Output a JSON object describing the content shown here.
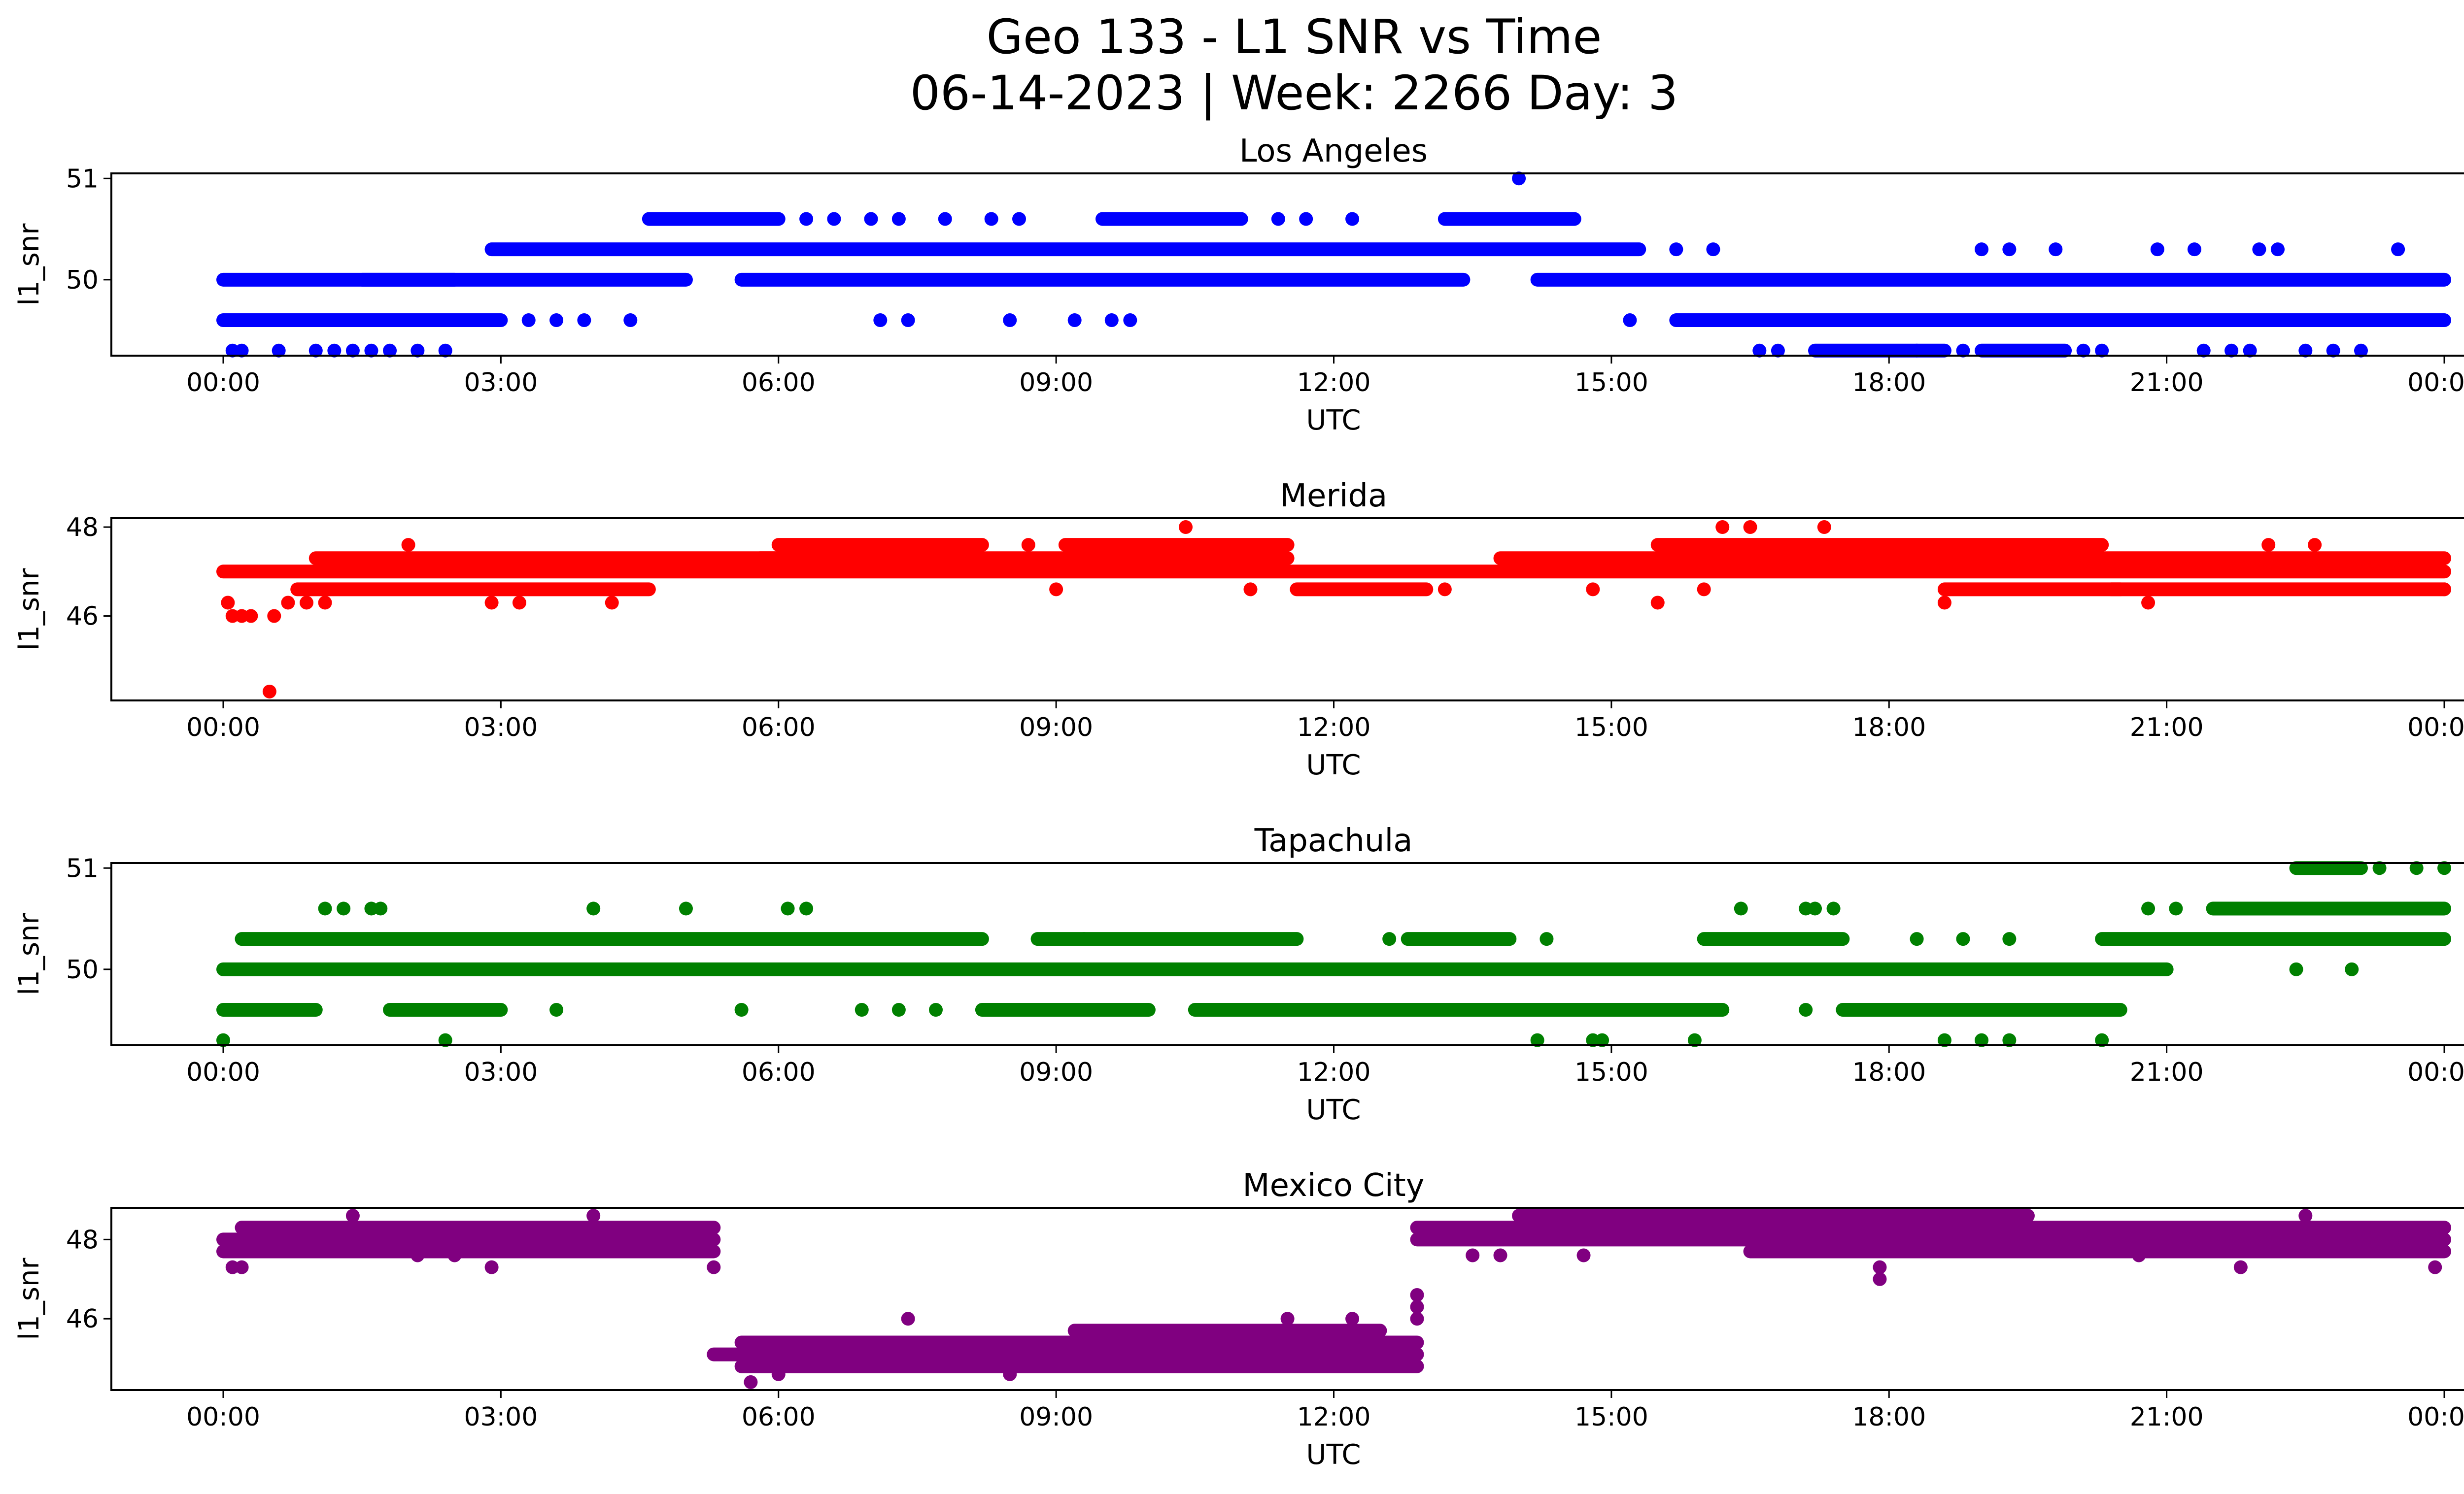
{
  "figure": {
    "title_line1": "Geo 133 - L1 SNR vs Time",
    "title_line2": "06-14-2023 | Week: 2266 Day: 3"
  },
  "chart_data": [
    {
      "type": "scatter",
      "title": "Los Angeles",
      "xlabel": "UTC",
      "ylabel": "l1_snr",
      "x_ticks": [
        "00:00",
        "03:00",
        "06:00",
        "09:00",
        "12:00",
        "15:00",
        "18:00",
        "21:00",
        "00:00"
      ],
      "y_ticks": [
        50,
        51
      ],
      "ylim": [
        49.25,
        51.05
      ],
      "color": "#0000ff",
      "segments": [
        {
          "x0": 0.0,
          "x1": 2.5,
          "y": 50.0
        },
        {
          "x0": 0.0,
          "x1": 3.0,
          "y": 49.6
        },
        {
          "x0": 1.5,
          "x1": 5.0,
          "y": 50.0
        },
        {
          "x0": 2.9,
          "x1": 15.3,
          "y": 50.3
        },
        {
          "x0": 4.6,
          "x1": 6.0,
          "y": 50.6
        },
        {
          "x0": 5.6,
          "x1": 13.4,
          "y": 50.0
        },
        {
          "x0": 9.5,
          "x1": 11.0,
          "y": 50.6
        },
        {
          "x0": 13.2,
          "x1": 14.6,
          "y": 50.6
        },
        {
          "x0": 14.2,
          "x1": 24.0,
          "y": 50.0
        },
        {
          "x0": 15.7,
          "x1": 24.0,
          "y": 49.6
        },
        {
          "x0": 17.2,
          "x1": 18.6,
          "y": 49.3
        },
        {
          "x0": 19.0,
          "x1": 19.9,
          "y": 49.3
        }
      ],
      "points": [
        {
          "x": 0.1,
          "y": 49.3
        },
        {
          "x": 0.2,
          "y": 49.3
        },
        {
          "x": 0.6,
          "y": 49.3
        },
        {
          "x": 1.0,
          "y": 49.3
        },
        {
          "x": 1.2,
          "y": 49.3
        },
        {
          "x": 1.4,
          "y": 49.3
        },
        {
          "x": 1.6,
          "y": 49.3
        },
        {
          "x": 1.8,
          "y": 49.3
        },
        {
          "x": 2.1,
          "y": 49.3
        },
        {
          "x": 2.4,
          "y": 49.3
        },
        {
          "x": 3.3,
          "y": 49.6
        },
        {
          "x": 3.6,
          "y": 49.6
        },
        {
          "x": 3.9,
          "y": 49.6
        },
        {
          "x": 4.4,
          "y": 49.6
        },
        {
          "x": 6.3,
          "y": 50.6
        },
        {
          "x": 6.6,
          "y": 50.6
        },
        {
          "x": 7.0,
          "y": 50.6
        },
        {
          "x": 7.3,
          "y": 50.6
        },
        {
          "x": 7.8,
          "y": 50.6
        },
        {
          "x": 8.3,
          "y": 50.6
        },
        {
          "x": 8.6,
          "y": 50.6
        },
        {
          "x": 7.1,
          "y": 49.6
        },
        {
          "x": 7.4,
          "y": 49.6
        },
        {
          "x": 8.5,
          "y": 49.6
        },
        {
          "x": 9.2,
          "y": 49.6
        },
        {
          "x": 9.6,
          "y": 49.6
        },
        {
          "x": 9.8,
          "y": 49.6
        },
        {
          "x": 11.4,
          "y": 50.6
        },
        {
          "x": 11.7,
          "y": 50.6
        },
        {
          "x": 12.2,
          "y": 50.6
        },
        {
          "x": 14.0,
          "y": 51.0
        },
        {
          "x": 15.2,
          "y": 49.6
        },
        {
          "x": 15.7,
          "y": 50.3
        },
        {
          "x": 16.1,
          "y": 50.3
        },
        {
          "x": 16.6,
          "y": 49.3
        },
        {
          "x": 16.8,
          "y": 49.3
        },
        {
          "x": 19.0,
          "y": 50.3
        },
        {
          "x": 19.3,
          "y": 50.3
        },
        {
          "x": 19.8,
          "y": 50.3
        },
        {
          "x": 20.1,
          "y": 49.3
        },
        {
          "x": 20.3,
          "y": 49.3
        },
        {
          "x": 20.9,
          "y": 50.3
        },
        {
          "x": 21.3,
          "y": 50.3
        },
        {
          "x": 21.4,
          "y": 49.3
        },
        {
          "x": 21.7,
          "y": 49.3
        },
        {
          "x": 22.0,
          "y": 50.3
        },
        {
          "x": 22.2,
          "y": 50.3
        },
        {
          "x": 22.5,
          "y": 49.3
        },
        {
          "x": 22.8,
          "y": 49.3
        },
        {
          "x": 23.1,
          "y": 49.3
        },
        {
          "x": 23.5,
          "y": 50.3
        },
        {
          "x": 21.9,
          "y": 49.3
        },
        {
          "x": 18.3,
          "y": 49.3
        },
        {
          "x": 18.8,
          "y": 49.3
        }
      ]
    },
    {
      "type": "scatter",
      "title": "Merida",
      "xlabel": "UTC",
      "ylabel": "l1_snr",
      "x_ticks": [
        "00:00",
        "03:00",
        "06:00",
        "09:00",
        "12:00",
        "15:00",
        "18:00",
        "21:00",
        "00:00"
      ],
      "y_ticks": [
        46,
        48
      ],
      "ylim": [
        44.1,
        48.2
      ],
      "color": "#ff0000",
      "segments": [
        {
          "x0": 0.0,
          "x1": 24.0,
          "y": 47.0
        },
        {
          "x0": 0.8,
          "x1": 4.6,
          "y": 46.6
        },
        {
          "x0": 1.0,
          "x1": 6.0,
          "y": 47.3
        },
        {
          "x0": 5.8,
          "x1": 11.5,
          "y": 47.3
        },
        {
          "x0": 6.0,
          "x1": 8.2,
          "y": 47.6
        },
        {
          "x0": 9.1,
          "x1": 11.5,
          "y": 47.6
        },
        {
          "x0": 11.6,
          "x1": 13.0,
          "y": 46.6
        },
        {
          "x0": 13.8,
          "x1": 24.0,
          "y": 47.3
        },
        {
          "x0": 15.5,
          "x1": 20.3,
          "y": 47.6
        },
        {
          "x0": 18.6,
          "x1": 20.5,
          "y": 46.6
        },
        {
          "x0": 20.4,
          "x1": 24.0,
          "y": 46.6
        }
      ],
      "points": [
        {
          "x": 0.05,
          "y": 46.3
        },
        {
          "x": 0.1,
          "y": 46.0
        },
        {
          "x": 0.2,
          "y": 46.0
        },
        {
          "x": 0.3,
          "y": 46.0
        },
        {
          "x": 0.5,
          "y": 44.3
        },
        {
          "x": 0.55,
          "y": 46.0
        },
        {
          "x": 0.7,
          "y": 46.3
        },
        {
          "x": 0.9,
          "y": 46.3
        },
        {
          "x": 1.1,
          "y": 46.3
        },
        {
          "x": 2.0,
          "y": 47.6
        },
        {
          "x": 2.9,
          "y": 46.3
        },
        {
          "x": 3.2,
          "y": 46.3
        },
        {
          "x": 4.2,
          "y": 46.3
        },
        {
          "x": 8.7,
          "y": 47.6
        },
        {
          "x": 9.0,
          "y": 46.6
        },
        {
          "x": 10.4,
          "y": 48.0
        },
        {
          "x": 11.1,
          "y": 46.6
        },
        {
          "x": 13.2,
          "y": 46.6
        },
        {
          "x": 14.8,
          "y": 46.6
        },
        {
          "x": 15.5,
          "y": 46.3
        },
        {
          "x": 16.2,
          "y": 48.0
        },
        {
          "x": 16.5,
          "y": 48.0
        },
        {
          "x": 17.3,
          "y": 48.0
        },
        {
          "x": 16.0,
          "y": 46.6
        },
        {
          "x": 18.6,
          "y": 46.3
        },
        {
          "x": 20.8,
          "y": 46.3
        },
        {
          "x": 22.1,
          "y": 47.6
        },
        {
          "x": 22.6,
          "y": 47.6
        },
        {
          "x": 24.0,
          "y": 46.6
        }
      ]
    },
    {
      "type": "scatter",
      "title": "Tapachula",
      "xlabel": "UTC",
      "ylabel": "l1_snr",
      "x_ticks": [
        "00:00",
        "03:00",
        "06:00",
        "09:00",
        "12:00",
        "15:00",
        "18:00",
        "21:00",
        "00:00"
      ],
      "y_ticks": [
        50,
        51
      ],
      "ylim": [
        49.25,
        51.05
      ],
      "color": "#008000",
      "segments": [
        {
          "x0": 0.0,
          "x1": 21.0,
          "y": 50.0
        },
        {
          "x0": 0.2,
          "x1": 8.2,
          "y": 50.3
        },
        {
          "x0": 0.0,
          "x1": 1.0,
          "y": 49.6
        },
        {
          "x0": 1.8,
          "x1": 3.0,
          "y": 49.6
        },
        {
          "x0": 8.2,
          "x1": 10.0,
          "y": 49.6
        },
        {
          "x0": 10.5,
          "x1": 16.2,
          "y": 49.6
        },
        {
          "x0": 17.5,
          "x1": 20.5,
          "y": 49.6
        },
        {
          "x0": 8.8,
          "x1": 11.6,
          "y": 50.3
        },
        {
          "x0": 12.8,
          "x1": 13.9,
          "y": 50.3
        },
        {
          "x0": 16.0,
          "x1": 17.5,
          "y": 50.3
        },
        {
          "x0": 20.3,
          "x1": 24.0,
          "y": 50.3
        },
        {
          "x0": 21.5,
          "x1": 24.0,
          "y": 50.6
        },
        {
          "x0": 22.4,
          "x1": 23.1,
          "y": 51.0
        }
      ],
      "points": [
        {
          "x": 0.0,
          "y": 49.3
        },
        {
          "x": 1.1,
          "y": 50.6
        },
        {
          "x": 1.3,
          "y": 50.6
        },
        {
          "x": 1.6,
          "y": 50.6
        },
        {
          "x": 1.7,
          "y": 50.6
        },
        {
          "x": 2.4,
          "y": 49.3
        },
        {
          "x": 3.6,
          "y": 49.6
        },
        {
          "x": 4.0,
          "y": 50.6
        },
        {
          "x": 5.0,
          "y": 50.6
        },
        {
          "x": 5.6,
          "y": 49.6
        },
        {
          "x": 6.1,
          "y": 50.6
        },
        {
          "x": 6.3,
          "y": 50.6
        },
        {
          "x": 6.9,
          "y": 49.6
        },
        {
          "x": 7.3,
          "y": 49.6
        },
        {
          "x": 7.7,
          "y": 49.6
        },
        {
          "x": 9.3,
          "y": 50.3
        },
        {
          "x": 12.6,
          "y": 50.3
        },
        {
          "x": 14.3,
          "y": 50.3
        },
        {
          "x": 14.2,
          "y": 49.3
        },
        {
          "x": 14.8,
          "y": 49.3
        },
        {
          "x": 14.9,
          "y": 49.3
        },
        {
          "x": 15.9,
          "y": 49.3
        },
        {
          "x": 16.4,
          "y": 50.6
        },
        {
          "x": 17.1,
          "y": 50.6
        },
        {
          "x": 17.2,
          "y": 50.6
        },
        {
          "x": 17.4,
          "y": 50.6
        },
        {
          "x": 17.1,
          "y": 49.6
        },
        {
          "x": 18.3,
          "y": 50.3
        },
        {
          "x": 18.8,
          "y": 50.3
        },
        {
          "x": 19.3,
          "y": 50.3
        },
        {
          "x": 18.6,
          "y": 49.3
        },
        {
          "x": 19.0,
          "y": 49.3
        },
        {
          "x": 19.3,
          "y": 49.3
        },
        {
          "x": 20.3,
          "y": 49.3
        },
        {
          "x": 20.8,
          "y": 50.6
        },
        {
          "x": 21.1,
          "y": 50.6
        },
        {
          "x": 22.4,
          "y": 50.0
        },
        {
          "x": 23.0,
          "y": 50.0
        },
        {
          "x": 23.3,
          "y": 51.0
        },
        {
          "x": 23.7,
          "y": 51.0
        },
        {
          "x": 24.0,
          "y": 51.0
        }
      ]
    },
    {
      "type": "scatter",
      "title": "Mexico City",
      "xlabel": "UTC",
      "ylabel": "l1_snr",
      "x_ticks": [
        "00:00",
        "03:00",
        "06:00",
        "09:00",
        "12:00",
        "15:00",
        "18:00",
        "21:00",
        "00:00"
      ],
      "y_ticks": [
        46,
        48
      ],
      "ylim": [
        44.2,
        48.8
      ],
      "color": "#800080",
      "segments": [
        {
          "x0": 0.0,
          "x1": 5.3,
          "y": 48.0
        },
        {
          "x0": 0.0,
          "x1": 5.3,
          "y": 47.7
        },
        {
          "x0": 0.2,
          "x1": 5.3,
          "y": 48.3
        },
        {
          "x0": 5.3,
          "x1": 12.9,
          "y": 45.1
        },
        {
          "x0": 5.6,
          "x1": 12.9,
          "y": 44.8
        },
        {
          "x0": 5.6,
          "x1": 12.9,
          "y": 45.4
        },
        {
          "x0": 9.2,
          "x1": 12.5,
          "y": 45.7
        },
        {
          "x0": 12.9,
          "x1": 24.0,
          "y": 48.0
        },
        {
          "x0": 12.9,
          "x1": 24.0,
          "y": 48.3
        },
        {
          "x0": 14.0,
          "x1": 19.5,
          "y": 48.6
        },
        {
          "x0": 16.5,
          "x1": 24.0,
          "y": 47.7
        }
      ],
      "points": [
        {
          "x": 0.1,
          "y": 47.3
        },
        {
          "x": 0.2,
          "y": 47.3
        },
        {
          "x": 1.4,
          "y": 48.6
        },
        {
          "x": 2.1,
          "y": 47.6
        },
        {
          "x": 2.5,
          "y": 47.6
        },
        {
          "x": 2.9,
          "y": 47.3
        },
        {
          "x": 4.0,
          "y": 48.6
        },
        {
          "x": 5.3,
          "y": 47.3
        },
        {
          "x": 5.7,
          "y": 44.4
        },
        {
          "x": 6.0,
          "y": 44.6
        },
        {
          "x": 7.4,
          "y": 46.0
        },
        {
          "x": 8.5,
          "y": 44.6
        },
        {
          "x": 11.5,
          "y": 46.0
        },
        {
          "x": 12.2,
          "y": 46.0
        },
        {
          "x": 12.9,
          "y": 46.0
        },
        {
          "x": 12.9,
          "y": 46.6
        },
        {
          "x": 12.9,
          "y": 46.3
        },
        {
          "x": 13.5,
          "y": 47.6
        },
        {
          "x": 13.8,
          "y": 47.6
        },
        {
          "x": 14.7,
          "y": 47.6
        },
        {
          "x": 17.9,
          "y": 47.0
        },
        {
          "x": 17.9,
          "y": 47.3
        },
        {
          "x": 20.7,
          "y": 47.6
        },
        {
          "x": 21.8,
          "y": 47.3
        },
        {
          "x": 22.5,
          "y": 48.6
        },
        {
          "x": 23.9,
          "y": 47.3
        }
      ]
    }
  ]
}
